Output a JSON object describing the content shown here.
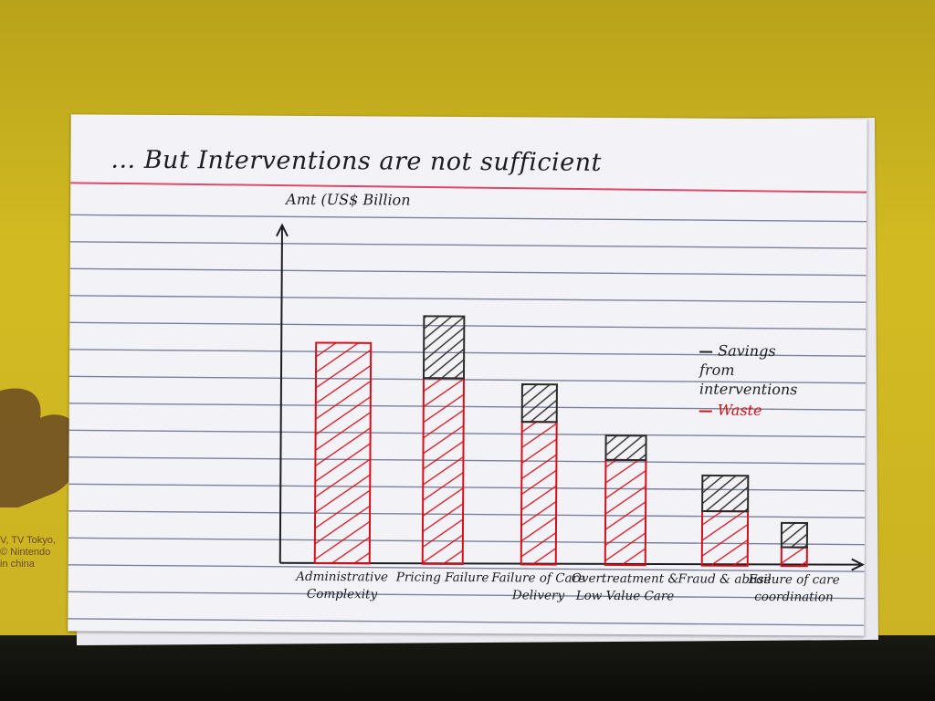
{
  "chart_data": {
    "type": "bar",
    "title": "... But Interventions are not sufficient",
    "ylabel": "Amt (US$ Billion",
    "xlabel": "",
    "categories": [
      "Administrative Complexity",
      "Pricing Failure",
      "Failure of Care Delivery",
      "Overtreatment & Low Value Care",
      "Fraud & abuse",
      "Failure of care coordination"
    ],
    "series": [
      {
        "name": "Waste",
        "values": [
          235,
          198,
          152,
          112,
          58,
          20
        ],
        "color": "#d4111b"
      },
      {
        "name": "Savings from interventions",
        "values": [
          0,
          66,
          40,
          26,
          38,
          26
        ],
        "color": "#2a2a2a"
      }
    ],
    "stacked": true,
    "ylim": [
      0,
      360
    ],
    "grid": false,
    "legend_position": "right",
    "legend": {
      "savings_label": "Savings\nfrom\ninterventions",
      "waste_label": "Waste"
    }
  },
  "brand_text": "V, TV Tokyo,\n© Nintendo\nin china"
}
